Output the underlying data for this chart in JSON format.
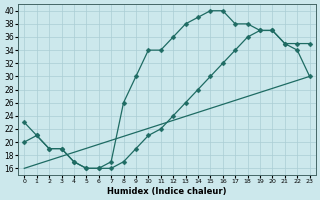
{
  "xlabel": "Humidex (Indice chaleur)",
  "xlim": [
    -0.5,
    23.5
  ],
  "ylim": [
    15,
    41
  ],
  "yticks": [
    16,
    18,
    20,
    22,
    24,
    26,
    28,
    30,
    32,
    34,
    36,
    38,
    40
  ],
  "xticks": [
    0,
    1,
    2,
    3,
    4,
    5,
    6,
    7,
    8,
    9,
    10,
    11,
    12,
    13,
    14,
    15,
    16,
    17,
    18,
    19,
    20,
    21,
    22,
    23
  ],
  "bg_color": "#cce8ec",
  "grid_color": "#aacdd4",
  "line_color": "#1e6b63",
  "line1_x": [
    0,
    1,
    2,
    3,
    4,
    5,
    6,
    7,
    8,
    9,
    10,
    11,
    12,
    13,
    14,
    15,
    16,
    17,
    18,
    19,
    20,
    21,
    22,
    23
  ],
  "line1_y": [
    23,
    21,
    19,
    19,
    17,
    16,
    16,
    17,
    26,
    30,
    34,
    34,
    36,
    38,
    39,
    40,
    40,
    38,
    38,
    37,
    37,
    35,
    35,
    35
  ],
  "line2_x": [
    0,
    1,
    2,
    3,
    4,
    5,
    6,
    7,
    8,
    9,
    10,
    11,
    12,
    13,
    14,
    15,
    16,
    17,
    18,
    19,
    20,
    21,
    22,
    23
  ],
  "line2_y": [
    20,
    21,
    19,
    19,
    17,
    16,
    16,
    16,
    17,
    19,
    21,
    22,
    24,
    26,
    28,
    30,
    32,
    34,
    36,
    37,
    37,
    35,
    34,
    30
  ],
  "line3_x": [
    0,
    23
  ],
  "line3_y": [
    16,
    30
  ]
}
